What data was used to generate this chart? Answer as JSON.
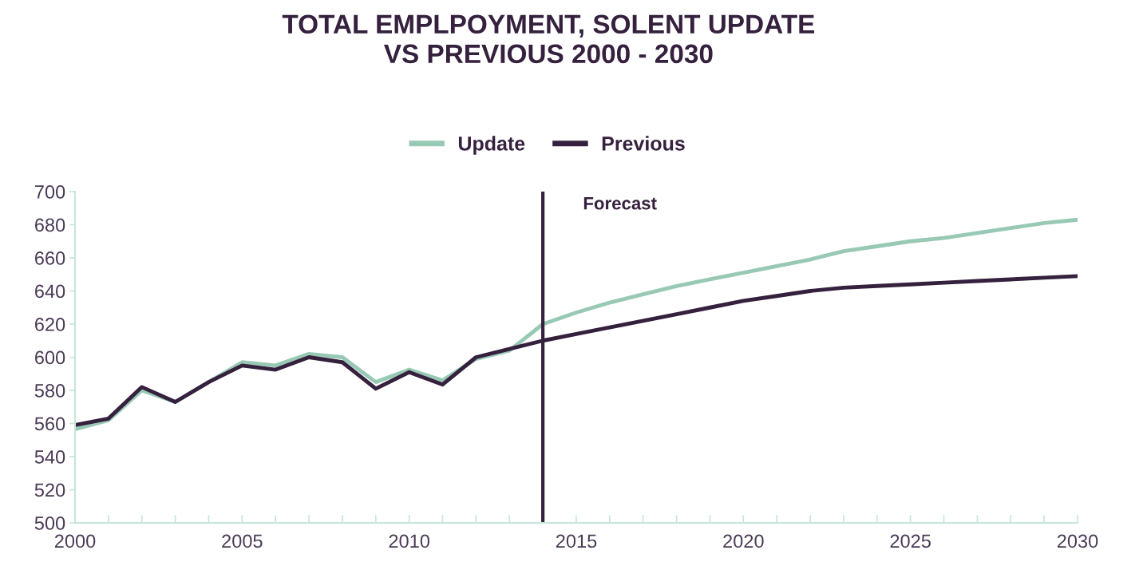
{
  "chart_data": {
    "type": "line",
    "title": "TOTAL EMPLPOYMENT, SOLENT UPDATE\nVS PREVIOUS 2000 - 2030",
    "x": [
      2000,
      2001,
      2002,
      2003,
      2004,
      2005,
      2006,
      2007,
      2008,
      2009,
      2010,
      2011,
      2012,
      2013,
      2014,
      2015,
      2016,
      2017,
      2018,
      2019,
      2020,
      2021,
      2022,
      2023,
      2024,
      2025,
      2026,
      2027,
      2028,
      2029,
      2030
    ],
    "series": [
      {
        "name": "Update",
        "color": "#98c9b5",
        "values": [
          556.5,
          562,
          580,
          573,
          585,
          597,
          595,
          602,
          600,
          585,
          592.5,
          586,
          599,
          604,
          620,
          627,
          633,
          638,
          643,
          647,
          651,
          655,
          659,
          664,
          667,
          670,
          672,
          675,
          678,
          681,
          683
        ]
      },
      {
        "name": "Previous",
        "color": "#35203e",
        "values": [
          559,
          563,
          582,
          573,
          585,
          595,
          592.5,
          600,
          597,
          581,
          591,
          583.5,
          600,
          605,
          610,
          614,
          618,
          622,
          626,
          630,
          634,
          637,
          640,
          642,
          643,
          644,
          645,
          646,
          647,
          648,
          649
        ]
      }
    ],
    "xlim": [
      2000,
      2030
    ],
    "xticks": [
      2000,
      {
        "value": 2001,
        "label": null
      },
      {
        "value": 2002,
        "label": null
      },
      {
        "value": 2003,
        "label": null
      },
      {
        "value": 2004,
        "label": null
      },
      2005,
      {
        "value": 2006,
        "label": null
      },
      {
        "value": 2007,
        "label": null
      },
      {
        "value": 2008,
        "label": null
      },
      {
        "value": 2009,
        "label": null
      },
      2010,
      {
        "value": 2011,
        "label": null
      },
      {
        "value": 2012,
        "label": null
      },
      {
        "value": 2013,
        "label": null
      },
      {
        "value": 2014,
        "label": null
      },
      2015,
      {
        "value": 2016,
        "label": null
      },
      {
        "value": 2017,
        "label": null
      },
      {
        "value": 2018,
        "label": null
      },
      {
        "value": 2019,
        "label": null
      },
      2020,
      {
        "value": 2021,
        "label": null
      },
      {
        "value": 2022,
        "label": null
      },
      {
        "value": 2023,
        "label": null
      },
      {
        "value": 2024,
        "label": null
      },
      2025,
      {
        "value": 2026,
        "label": null
      },
      {
        "value": 2027,
        "label": null
      },
      {
        "value": 2028,
        "label": null
      },
      {
        "value": 2029,
        "label": null
      },
      2030
    ],
    "ylim": [
      500,
      700
    ],
    "yticks": [
      500,
      520,
      540,
      560,
      580,
      600,
      620,
      640,
      660,
      680,
      700
    ],
    "ref_lines": [
      {
        "axis": "x",
        "value": 2014,
        "label": "Forecast",
        "color": "#35203e"
      }
    ],
    "legend": "top",
    "grid": false,
    "marker": "none",
    "line_style": "solid"
  }
}
